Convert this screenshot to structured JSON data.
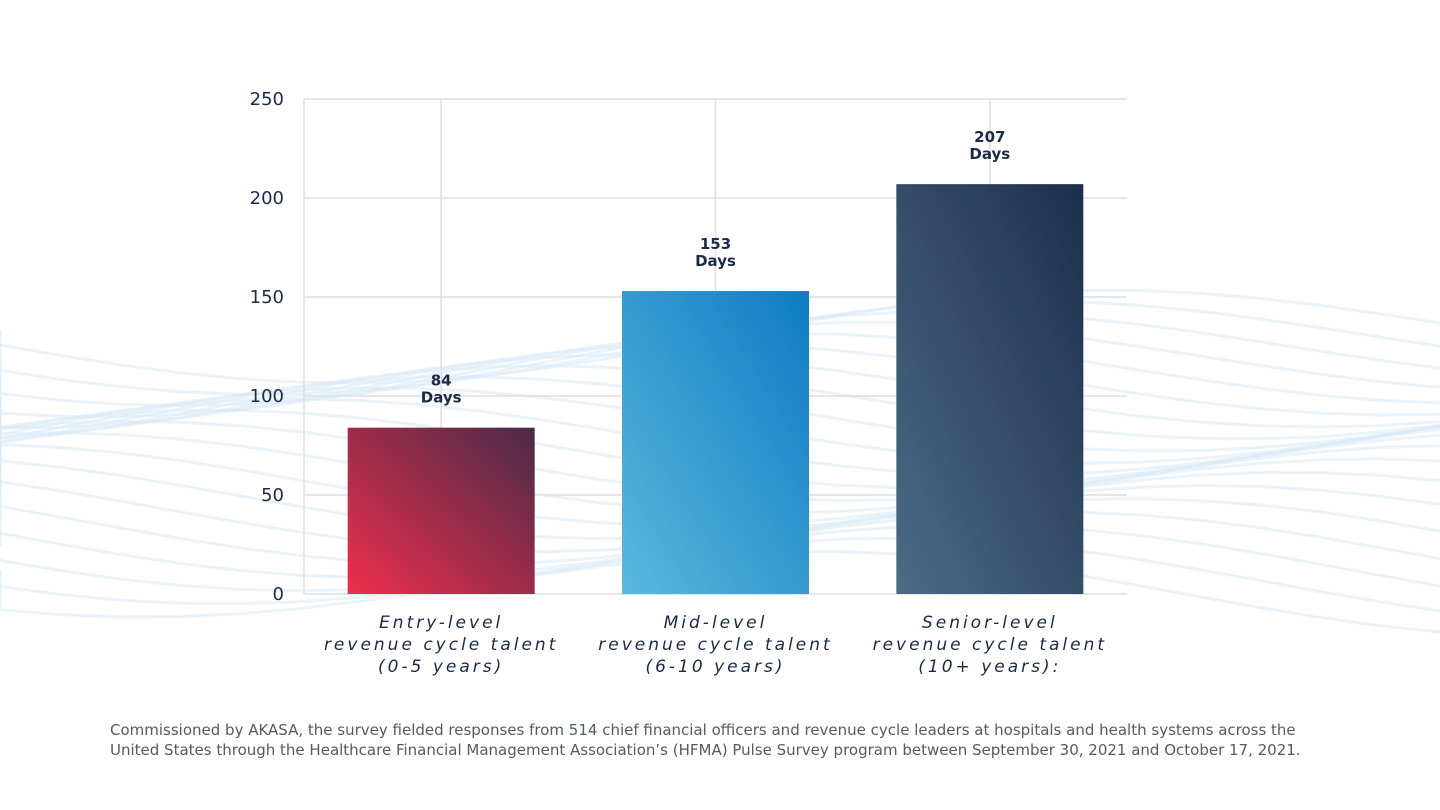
{
  "chart_data": {
    "type": "bar",
    "categories": [
      [
        "Entry-level",
        "revenue cycle talent",
        "(0-5 years)"
      ],
      [
        "Mid-level",
        "revenue cycle talent",
        "(6-10 years)"
      ],
      [
        "Senior-level",
        "revenue cycle talent",
        "(10+ years):"
      ]
    ],
    "values": [
      84,
      153,
      207
    ],
    "data_labels": [
      [
        "84",
        "Days"
      ],
      [
        "153",
        "Days"
      ],
      [
        "207",
        "Days"
      ]
    ],
    "ylim": [
      0,
      250
    ],
    "yticks": [
      "0",
      "50",
      "100",
      "150",
      "200",
      "250"
    ],
    "grid": true,
    "bar_colors": [
      [
        "#ee2f4c",
        "#4a2a48"
      ],
      [
        "#5cb8df",
        "#0d7cc2"
      ],
      [
        "#4d6b85",
        "#1c2f4d"
      ]
    ],
    "text_color": "#1c2b45"
  },
  "footnote": "Commissioned by AKASA, the survey fielded responses from 514 chief financial officers and revenue cycle leaders at hospitals and health systems across the United States through the Healthcare Financial Management Association’s (HFMA) Pulse Survey program between September 30, 2021 and October 17, 2021."
}
